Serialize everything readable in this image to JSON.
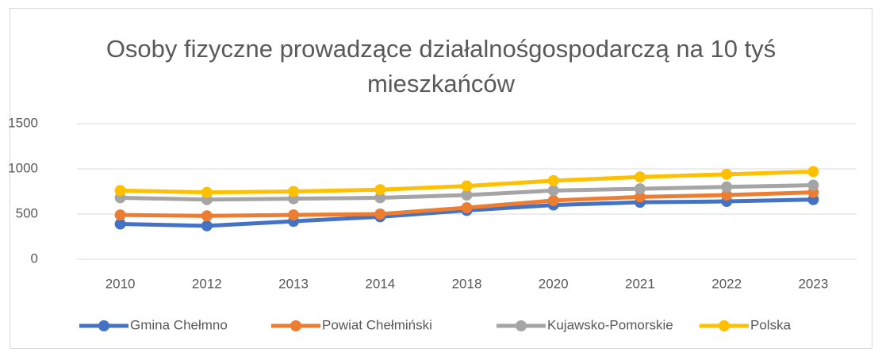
{
  "chart_data": {
    "type": "line",
    "title": "Osoby fizyczne prowadzące działalnośgospodarczą na 10 tyś mieszkańców",
    "categories": [
      "2010",
      "2012",
      "2013",
      "2014",
      "2018",
      "2020",
      "2021",
      "2022",
      "2023"
    ],
    "series": [
      {
        "name": "Gmina Chełmno",
        "color": "#4472c4",
        "values": [
          390,
          370,
          420,
          470,
          540,
          600,
          630,
          640,
          660
        ]
      },
      {
        "name": "Powiat Chełmiński",
        "color": "#ed7d31",
        "values": [
          490,
          480,
          490,
          500,
          570,
          650,
          690,
          710,
          740
        ]
      },
      {
        "name": "Kujawsko-Pomorskie",
        "color": "#a5a5a5",
        "values": [
          680,
          660,
          670,
          680,
          710,
          760,
          780,
          800,
          820
        ]
      },
      {
        "name": "Polska",
        "color": "#ffc000",
        "values": [
          760,
          740,
          750,
          770,
          810,
          870,
          910,
          940,
          970
        ]
      }
    ],
    "ylim": [
      0,
      1500
    ],
    "yticks": [
      0,
      500,
      1000,
      1500
    ],
    "grid": true,
    "legend": "bottom"
  }
}
